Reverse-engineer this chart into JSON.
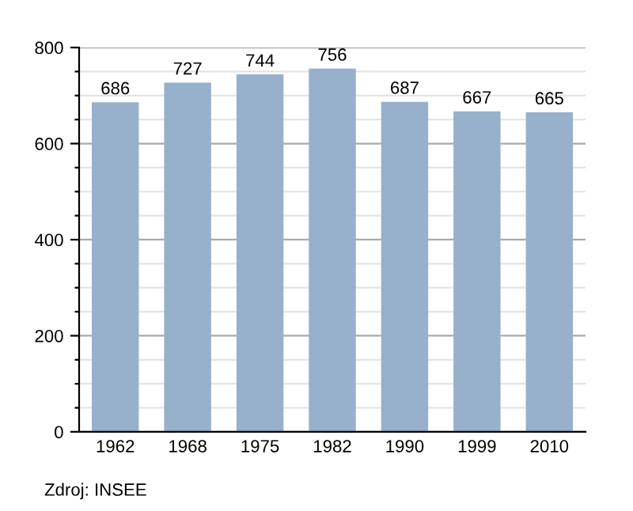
{
  "chart_data": {
    "type": "bar",
    "categories": [
      "1962",
      "1968",
      "1975",
      "1982",
      "1990",
      "1999",
      "2010"
    ],
    "values": [
      686,
      727,
      744,
      756,
      687,
      667,
      665
    ],
    "color": "#97b0cb",
    "data_labels": true,
    "ylim": [
      0,
      800
    ],
    "yticks": [
      0,
      {
        "value": 50,
        "label": null
      },
      {
        "value": 100,
        "label": null
      },
      {
        "value": 150,
        "label": null
      },
      200,
      {
        "value": 250,
        "label": null
      },
      {
        "value": 300,
        "label": null
      },
      {
        "value": 350,
        "label": null
      },
      400,
      {
        "value": 450,
        "label": null
      },
      {
        "value": 500,
        "label": null
      },
      {
        "value": 550,
        "label": null
      },
      600,
      {
        "value": 650,
        "label": null
      },
      {
        "value": 700,
        "label": null
      },
      {
        "value": 750,
        "label": null
      },
      800
    ],
    "grid": "y",
    "annotations": [
      "Zdroj: INSEE"
    ]
  }
}
